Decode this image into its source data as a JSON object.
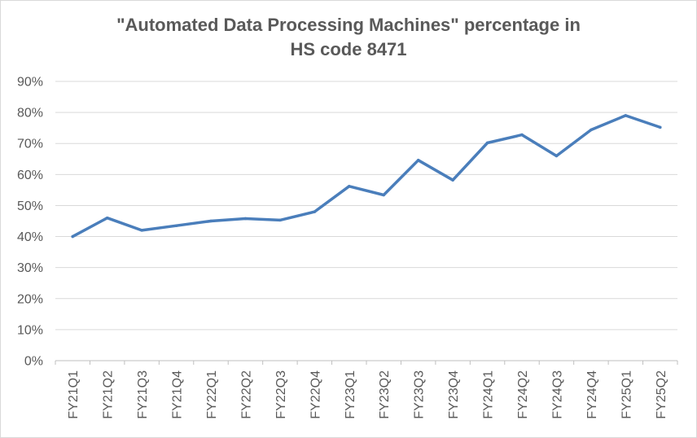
{
  "chart_data": {
    "type": "line",
    "title_line1": "\"Automated Data Processing Machines\" percentage in",
    "title_line2": "HS code 8471",
    "xlabel": "",
    "ylabel": "",
    "categories": [
      "FY21Q1",
      "FY21Q2",
      "FY21Q3",
      "FY21Q4",
      "FY22Q1",
      "FY22Q2",
      "FY22Q3",
      "FY22Q4",
      "FY23Q1",
      "FY23Q2",
      "FY23Q3",
      "FY23Q4",
      "FY24Q1",
      "FY24Q2",
      "FY24Q3",
      "FY24Q4",
      "FY25Q1",
      "FY25Q2"
    ],
    "series": [
      {
        "values": [
          40,
          46,
          42,
          43.5,
          45,
          45.8,
          45.3,
          48,
          56.2,
          53.4,
          64.6,
          58.2,
          70.2,
          72.8,
          66,
          74.4,
          79,
          75.2
        ]
      }
    ],
    "y_ticks": [
      "0%",
      "10%",
      "20%",
      "30%",
      "40%",
      "50%",
      "60%",
      "70%",
      "80%",
      "90%"
    ],
    "ylim": [
      0,
      90
    ],
    "grid": true,
    "legend": "none",
    "line_color": "#4a7ebb",
    "grid_color": "#d9d9d9"
  }
}
